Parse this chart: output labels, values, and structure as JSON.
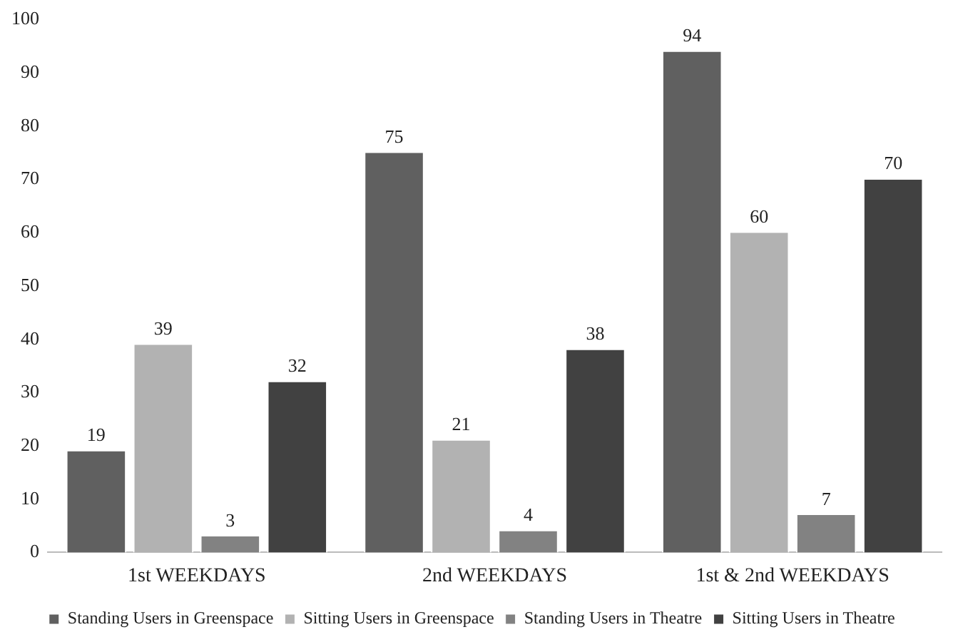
{
  "chart_data": {
    "type": "bar",
    "categories": [
      "1st WEEKDAYS",
      "2nd WEEKDAYS",
      "1st & 2nd WEEKDAYS"
    ],
    "series": [
      {
        "name": "Standing Users in Greenspace",
        "color": "#606060",
        "values": [
          19,
          75,
          94
        ]
      },
      {
        "name": "Sitting Users in Greenspace",
        "color": "#b2b2b2",
        "values": [
          39,
          21,
          60
        ]
      },
      {
        "name": "Standing Users in Theatre",
        "color": "#828282",
        "values": [
          3,
          4,
          7
        ]
      },
      {
        "name": "Sitting Users in Theatre",
        "color": "#414141",
        "values": [
          32,
          38,
          70
        ]
      }
    ],
    "ylim": [
      0,
      100
    ],
    "yticks": [
      0,
      10,
      20,
      30,
      40,
      50,
      60,
      70,
      80,
      90,
      100
    ],
    "grid": false,
    "legend": "bottom",
    "data_labels": true
  }
}
